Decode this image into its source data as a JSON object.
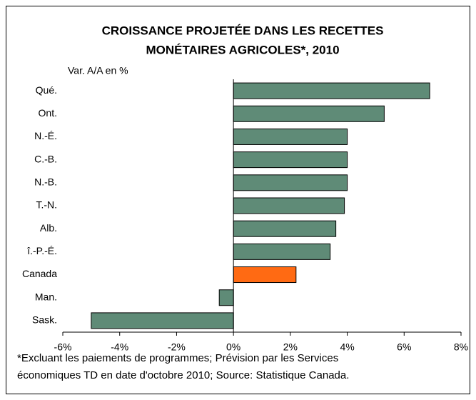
{
  "chart_data": {
    "type": "bar",
    "orientation": "horizontal",
    "title": [
      "CROISSANCE PROJETÉE DANS LES RECETTES",
      "MONÉTAIRES AGRICOLES*, 2010"
    ],
    "y_label": "Var. A/A en %",
    "categories": [
      "Qué.",
      "Ont.",
      "N.-É.",
      "C.-B.",
      "N.-B.",
      "T.-N.",
      "Alb.",
      "î.-P.-É.",
      "Canada",
      "Man.",
      "Sask."
    ],
    "values": [
      6.9,
      5.3,
      4.0,
      4.0,
      4.0,
      3.9,
      3.6,
      3.4,
      2.2,
      -0.5,
      -5.0
    ],
    "colors": [
      "#5f8b77",
      "#5f8b77",
      "#5f8b77",
      "#5f8b77",
      "#5f8b77",
      "#5f8b77",
      "#5f8b77",
      "#5f8b77",
      "#ff6a13",
      "#5f8b77",
      "#5f8b77"
    ],
    "xlim": [
      -6,
      8
    ],
    "xticks": [
      {
        "value": -6,
        "label": "-6%"
      },
      {
        "value": -4,
        "label": "-4%"
      },
      {
        "value": -2,
        "label": "-2%"
      },
      {
        "value": 0,
        "label": "0%"
      },
      {
        "value": 2,
        "label": "2%"
      },
      {
        "value": 4,
        "label": "4%"
      },
      {
        "value": 6,
        "label": "6%"
      },
      {
        "value": 8,
        "label": "8%"
      }
    ],
    "grid": false,
    "footnote": [
      "*Excluant les paiements de programmes; Prévision par les Services",
      "économiques TD en date d'octobre 2010; Source: Statistique Canada."
    ]
  }
}
